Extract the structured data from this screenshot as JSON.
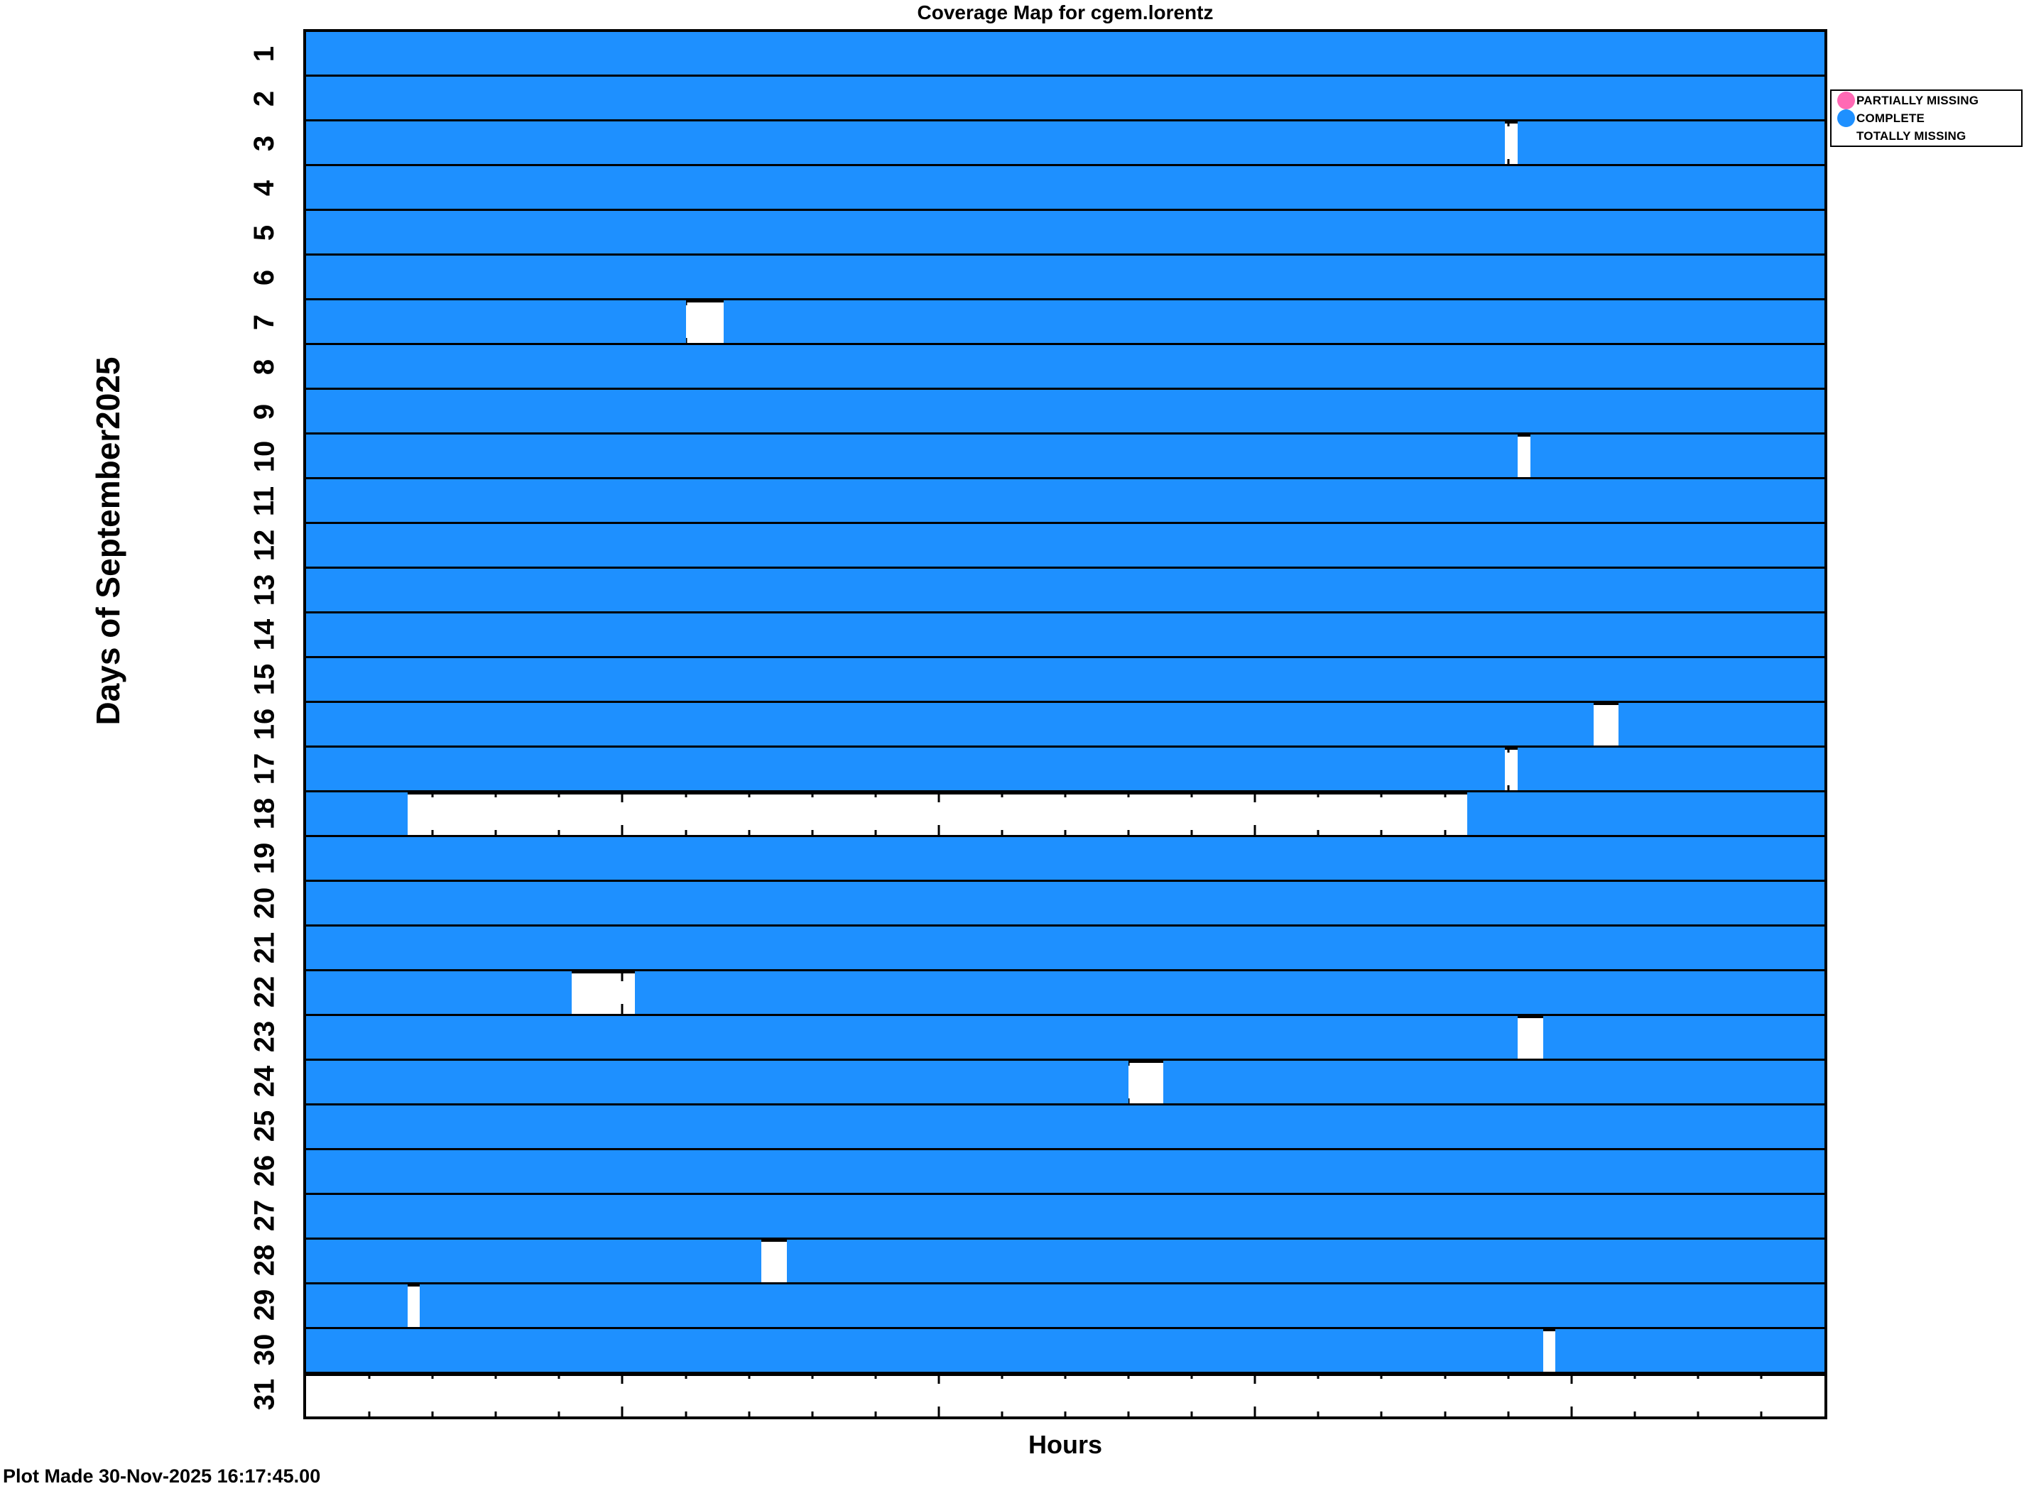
{
  "title": "Coverage Map for cgem.lorentz",
  "footer": "Plot Made 30-Nov-2025 16:17:45.00",
  "colors": {
    "complete": "#1E90FF",
    "partially_missing": "#FF69B4",
    "totally_missing": "#FFFFFF",
    "axis": "#000000",
    "background": "#FFFFFF"
  },
  "x_axis": {
    "label": "Hours",
    "min": 0,
    "max": 24,
    "major_ticks": [
      5,
      10,
      15,
      20
    ],
    "minor_tick_step": 1,
    "tick_labels_visible": false
  },
  "y_axis": {
    "label": "Days of September2025",
    "min_day": 1,
    "max_day": 31
  },
  "legend": {
    "items": [
      {
        "label": "PARTIALLY MISSING",
        "color": "#FF69B4",
        "marker": "circle"
      },
      {
        "label": "COMPLETE",
        "color": "#1E90FF",
        "marker": "circle"
      },
      {
        "label": "TOTALLY MISSING",
        "color": "#FFFFFF",
        "marker": "circle"
      }
    ]
  },
  "chart_data": {
    "type": "heatmap",
    "subtype": "daily-coverage-map",
    "title": "Coverage Map for cgem.lorentz",
    "xlabel": "Hours",
    "ylabel": "Days of September2025",
    "x_range_hours": [
      0,
      24
    ],
    "legend_position": "outside-upper-right",
    "grid": false,
    "value_legend": {
      "complete": "blue fill",
      "totally_missing": "white fill",
      "partially_missing": "pink fill (none present in this plot)"
    },
    "rows": [
      {
        "day": 1,
        "status": "complete",
        "missing_hours": []
      },
      {
        "day": 2,
        "status": "complete",
        "missing_hours": []
      },
      {
        "day": 3,
        "status": "complete_with_missing_intervals",
        "missing_hours": [
          [
            18.95,
            19.15
          ]
        ]
      },
      {
        "day": 4,
        "status": "complete",
        "missing_hours": []
      },
      {
        "day": 5,
        "status": "complete",
        "missing_hours": []
      },
      {
        "day": 6,
        "status": "complete",
        "missing_hours": []
      },
      {
        "day": 7,
        "status": "complete_with_missing_intervals",
        "missing_hours": [
          [
            6.0,
            6.6
          ]
        ]
      },
      {
        "day": 8,
        "status": "complete",
        "missing_hours": []
      },
      {
        "day": 9,
        "status": "complete",
        "missing_hours": []
      },
      {
        "day": 10,
        "status": "complete_with_missing_intervals",
        "missing_hours": [
          [
            19.15,
            19.35
          ]
        ]
      },
      {
        "day": 11,
        "status": "complete",
        "missing_hours": []
      },
      {
        "day": 12,
        "status": "complete",
        "missing_hours": []
      },
      {
        "day": 13,
        "status": "complete",
        "missing_hours": []
      },
      {
        "day": 14,
        "status": "complete",
        "missing_hours": []
      },
      {
        "day": 15,
        "status": "complete",
        "missing_hours": []
      },
      {
        "day": 16,
        "status": "complete_with_missing_intervals",
        "missing_hours": [
          [
            20.35,
            20.75
          ]
        ]
      },
      {
        "day": 17,
        "status": "complete_with_missing_intervals",
        "missing_hours": [
          [
            18.95,
            19.15
          ]
        ]
      },
      {
        "day": 18,
        "status": "complete_with_missing_intervals",
        "missing_hours": [
          [
            1.6,
            18.35
          ]
        ]
      },
      {
        "day": 19,
        "status": "complete",
        "missing_hours": []
      },
      {
        "day": 20,
        "status": "complete",
        "missing_hours": []
      },
      {
        "day": 21,
        "status": "complete",
        "missing_hours": []
      },
      {
        "day": 22,
        "status": "complete_with_missing_intervals",
        "missing_hours": [
          [
            4.2,
            5.2
          ]
        ]
      },
      {
        "day": 23,
        "status": "complete_with_missing_intervals",
        "missing_hours": [
          [
            19.15,
            19.55
          ]
        ]
      },
      {
        "day": 24,
        "status": "complete_with_missing_intervals",
        "missing_hours": [
          [
            13.0,
            13.55
          ]
        ]
      },
      {
        "day": 25,
        "status": "complete",
        "missing_hours": []
      },
      {
        "day": 26,
        "status": "complete",
        "missing_hours": []
      },
      {
        "day": 27,
        "status": "complete",
        "missing_hours": []
      },
      {
        "day": 28,
        "status": "complete_with_missing_intervals",
        "missing_hours": [
          [
            7.2,
            7.6
          ]
        ]
      },
      {
        "day": 29,
        "status": "complete_with_missing_intervals",
        "missing_hours": [
          [
            1.6,
            1.8
          ]
        ]
      },
      {
        "day": 30,
        "status": "complete_with_missing_intervals",
        "missing_hours": [
          [
            19.55,
            19.75
          ]
        ]
      },
      {
        "day": 31,
        "status": "totally_missing",
        "missing_hours": [
          [
            0,
            24
          ]
        ]
      }
    ]
  }
}
